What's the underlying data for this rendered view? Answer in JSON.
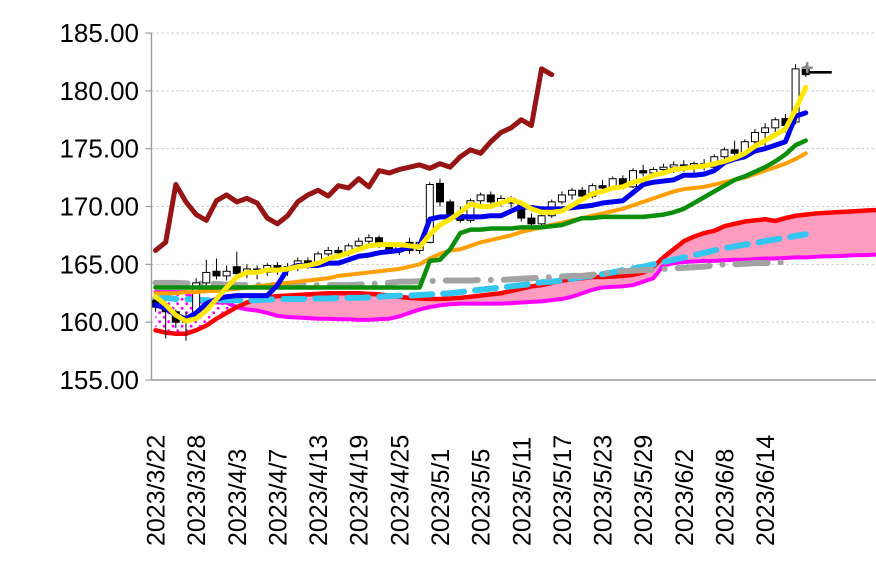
{
  "chart_data": {
    "type": "candlestick",
    "title": "",
    "legend": "none",
    "grid": "horizontal-dashed",
    "plot": {
      "background": "#FFFFFF",
      "gridline_color": "#C9C9C9",
      "axis_color": "#9B9B9B",
      "candle_up_fill": "#FFFFFF",
      "candle_down_fill": "#000000",
      "candle_border": "#000000"
    },
    "y_axis": {
      "min": 155,
      "max": 185,
      "step": 5,
      "labels": [
        "185.00",
        "180.00",
        "175.00",
        "170.00",
        "165.00",
        "160.00",
        "155.00"
      ]
    },
    "x_axis": {
      "tick_every": 4,
      "tick_labels": [
        "2023/3/22",
        "2023/3/28",
        "2023/4/3",
        "2023/4/7",
        "2023/4/13",
        "2023/4/19",
        "2023/4/25",
        "2023/5/1",
        "2023/5/5",
        "2023/5/11",
        "2023/5/17",
        "2023/5/23",
        "2023/5/29",
        "2023/6/2",
        "2023/6/8",
        "2023/6/14"
      ]
    },
    "candles": [
      [
        161.9,
        162.3,
        160.9,
        161.3
      ],
      [
        161.3,
        161.8,
        158.6,
        160.9
      ],
      [
        160.9,
        161.1,
        159.5,
        160.0
      ],
      [
        160.0,
        160.9,
        158.4,
        160.4
      ],
      [
        160.4,
        163.8,
        160.2,
        163.4
      ],
      [
        163.4,
        165.4,
        163.0,
        164.3
      ],
      [
        164.4,
        165.5,
        163.7,
        164.0
      ],
      [
        164.0,
        164.9,
        163.6,
        164.4
      ],
      [
        164.8,
        166.1,
        164.0,
        164.2
      ],
      [
        164.2,
        165.0,
        163.8,
        164.6
      ],
      [
        164.6,
        164.9,
        163.7,
        164.3
      ],
      [
        164.3,
        165.1,
        164.0,
        164.9
      ],
      [
        164.9,
        165.2,
        164.1,
        164.5
      ],
      [
        164.5,
        165.1,
        164.0,
        164.8
      ],
      [
        164.8,
        165.6,
        164.4,
        165.3
      ],
      [
        165.3,
        165.6,
        164.6,
        165.1
      ],
      [
        165.1,
        166.1,
        164.8,
        165.9
      ],
      [
        165.9,
        166.5,
        165.4,
        166.2
      ],
      [
        166.2,
        166.5,
        165.6,
        166.0
      ],
      [
        166.0,
        166.8,
        165.7,
        166.6
      ],
      [
        166.6,
        167.3,
        166.2,
        167.0
      ],
      [
        167.0,
        167.6,
        166.6,
        167.3
      ],
      [
        167.3,
        167.5,
        166.4,
        166.6
      ],
      [
        166.6,
        166.9,
        165.9,
        166.1
      ],
      [
        166.1,
        166.9,
        165.8,
        166.7
      ],
      [
        166.9,
        167.3,
        165.9,
        166.2
      ],
      [
        166.2,
        167.1,
        165.9,
        166.9
      ],
      [
        166.9,
        172.1,
        166.8,
        171.9
      ],
      [
        172.0,
        172.4,
        170.0,
        170.4
      ],
      [
        170.4,
        170.6,
        169.0,
        169.3
      ],
      [
        169.3,
        170.0,
        168.6,
        168.8
      ],
      [
        168.8,
        170.7,
        168.6,
        170.5
      ],
      [
        170.5,
        171.2,
        169.9,
        171.0
      ],
      [
        171.0,
        171.3,
        170.0,
        170.4
      ],
      [
        170.4,
        171.0,
        170.0,
        170.7
      ],
      [
        170.7,
        170.9,
        169.9,
        170.3
      ],
      [
        170.3,
        170.5,
        168.7,
        169.0
      ],
      [
        169.0,
        169.4,
        168.2,
        168.5
      ],
      [
        168.5,
        169.4,
        168.2,
        169.2
      ],
      [
        169.2,
        170.6,
        169.0,
        170.4
      ],
      [
        170.4,
        171.3,
        170.2,
        171.0
      ],
      [
        171.0,
        171.6,
        170.6,
        171.4
      ],
      [
        171.4,
        171.7,
        170.6,
        170.9
      ],
      [
        170.9,
        172.0,
        170.7,
        171.8
      ],
      [
        171.8,
        172.3,
        171.3,
        171.6
      ],
      [
        171.6,
        172.6,
        171.4,
        172.4
      ],
      [
        172.4,
        172.7,
        171.5,
        171.7
      ],
      [
        171.7,
        173.3,
        171.6,
        173.1
      ],
      [
        173.1,
        173.6,
        172.6,
        172.9
      ],
      [
        172.9,
        173.4,
        172.5,
        173.2
      ],
      [
        173.2,
        173.7,
        172.8,
        173.4
      ],
      [
        173.4,
        173.9,
        172.9,
        173.6
      ],
      [
        173.6,
        174.0,
        173.0,
        173.3
      ],
      [
        173.3,
        173.9,
        172.8,
        173.7
      ],
      [
        173.7,
        174.1,
        173.1,
        173.4
      ],
      [
        173.4,
        174.5,
        173.2,
        174.3
      ],
      [
        174.3,
        175.1,
        173.9,
        174.9
      ],
      [
        174.9,
        175.7,
        174.4,
        174.6
      ],
      [
        174.6,
        175.8,
        174.4,
        175.6
      ],
      [
        175.6,
        176.7,
        175.3,
        176.4
      ],
      [
        176.4,
        177.2,
        175.0,
        176.8
      ],
      [
        176.8,
        177.7,
        176.2,
        177.5
      ],
      [
        177.6,
        178.0,
        176.4,
        177.0
      ],
      [
        177.3,
        182.3,
        177.1,
        181.9
      ],
      [
        181.9,
        182.2,
        181.2,
        181.4
      ]
    ],
    "series": [
      {
        "name": "lagging-span",
        "color": "#961414",
        "width": 5,
        "style": "solid",
        "start": 0,
        "values": [
          166.2,
          166.9,
          171.9,
          170.4,
          169.3,
          168.8,
          170.5,
          171.0,
          170.4,
          170.7,
          170.3,
          169.0,
          168.5,
          169.2,
          170.4,
          171.0,
          171.4,
          170.9,
          171.8,
          171.6,
          172.4,
          171.7,
          173.1,
          172.9,
          173.2,
          173.4,
          173.6,
          173.3,
          173.7,
          173.4,
          174.3,
          174.9,
          174.6,
          175.6,
          176.4,
          176.8,
          177.5,
          177.0,
          181.9,
          181.4
        ]
      },
      {
        "name": "ma-fast-yellow",
        "color": "#FFE800",
        "width": 5,
        "style": "solid",
        "start": 0,
        "values": [
          162.2,
          161.5,
          160.6,
          160.1,
          160.3,
          161.0,
          162.0,
          163.0,
          163.9,
          164.3,
          164.3,
          164.5,
          164.5,
          164.6,
          164.8,
          164.9,
          165.1,
          165.5,
          165.7,
          166.0,
          166.3,
          166.6,
          166.7,
          166.7,
          166.7,
          166.6,
          166.5,
          167.6,
          168.4,
          168.9,
          169.5,
          170.2,
          170.0,
          170.0,
          170.3,
          170.6,
          170.3,
          169.8,
          169.5,
          169.5,
          169.6,
          170.1,
          170.6,
          171.1,
          171.3,
          171.6,
          171.7,
          172.1,
          172.3,
          172.7,
          172.9,
          173.2,
          173.3,
          173.4,
          173.5,
          173.7,
          173.9,
          174.2,
          174.6,
          175.2,
          175.7,
          176.2,
          176.7,
          178.4,
          180.3
        ]
      },
      {
        "name": "conversion-line-blue",
        "color": "#0000EE",
        "width": 5,
        "style": "solid",
        "start": 0,
        "values": [
          161.5,
          161.2,
          160.6,
          160.3,
          160.8,
          161.6,
          162.0,
          162.2,
          162.3,
          162.3,
          162.3,
          162.3,
          163.2,
          164.6,
          164.9,
          164.9,
          164.9,
          165.1,
          165.1,
          165.4,
          165.7,
          165.8,
          166.0,
          166.1,
          166.2,
          166.5,
          166.6,
          168.9,
          169.1,
          169.1,
          169.1,
          169.1,
          169.1,
          169.2,
          169.2,
          169.6,
          170.0,
          169.9,
          169.8,
          169.8,
          169.8,
          169.9,
          170.0,
          170.1,
          170.3,
          170.4,
          170.5,
          171.2,
          171.9,
          172.1,
          172.2,
          172.3,
          172.7,
          172.7,
          172.8,
          173.1,
          173.8,
          174.1,
          174.3,
          174.8,
          175.0,
          175.3,
          175.6,
          177.8,
          178.1
        ]
      },
      {
        "name": "base-line-green",
        "color": "#0B8F0B",
        "width": 4.5,
        "style": "solid",
        "start": 0,
        "values": [
          163.0,
          163.0,
          163.0,
          163.0,
          163.0,
          163.0,
          163.0,
          163.0,
          163.0,
          163.0,
          163.0,
          163.0,
          163.0,
          163.0,
          163.0,
          163.0,
          163.0,
          163.0,
          163.0,
          163.0,
          163.0,
          163.0,
          163.0,
          163.0,
          163.0,
          163.0,
          163.0,
          165.3,
          165.4,
          166.3,
          167.7,
          168.0,
          168.0,
          168.1,
          168.1,
          168.1,
          168.2,
          168.2,
          168.2,
          168.3,
          168.4,
          168.7,
          169.0,
          169.0,
          169.1,
          169.1,
          169.1,
          169.1,
          169.1,
          169.2,
          169.3,
          169.5,
          169.8,
          170.3,
          170.8,
          171.3,
          171.8,
          172.3,
          172.6,
          173.0,
          173.4,
          173.9,
          174.5,
          175.3,
          175.7
        ]
      },
      {
        "name": "ma-mid-orange",
        "color": "#FFA000",
        "width": 4,
        "style": "solid",
        "start": 0,
        "values": [
          162.5,
          162.5,
          162.5,
          162.6,
          162.6,
          162.7,
          162.7,
          162.8,
          162.9,
          163.0,
          163.1,
          163.2,
          163.3,
          163.4,
          163.5,
          163.6,
          163.7,
          163.8,
          164.0,
          164.1,
          164.2,
          164.3,
          164.4,
          164.5,
          164.6,
          164.8,
          165.0,
          165.5,
          165.9,
          166.2,
          166.3,
          166.6,
          166.9,
          167.1,
          167.3,
          167.5,
          167.8,
          168.0,
          168.2,
          168.4,
          168.6,
          168.8,
          169.0,
          169.2,
          169.4,
          169.6,
          169.8,
          170.1,
          170.4,
          170.7,
          171.0,
          171.3,
          171.5,
          171.6,
          171.7,
          171.9,
          172.1,
          172.3,
          172.5,
          172.8,
          173.1,
          173.4,
          173.7,
          174.1,
          174.6
        ]
      },
      {
        "name": "ma-slow-cyan-dashed",
        "color": "#33C6F0",
        "width": 6,
        "style": "dashed",
        "start": 0,
        "values": [
          162.1,
          162.1,
          162.0,
          162.0,
          161.95,
          161.9,
          161.9,
          161.9,
          161.9,
          161.9,
          161.9,
          161.95,
          162.0,
          162.0,
          162.0,
          162.0,
          162.05,
          162.05,
          162.1,
          162.1,
          162.1,
          162.15,
          162.2,
          162.25,
          162.3,
          162.3,
          162.35,
          162.4,
          162.45,
          162.5,
          162.6,
          162.7,
          162.8,
          162.9,
          163.0,
          163.1,
          163.2,
          163.3,
          163.45,
          163.5,
          163.6,
          163.75,
          163.9,
          164.0,
          164.15,
          164.3,
          164.5,
          164.65,
          164.8,
          165.0,
          165.2,
          165.4,
          165.6,
          165.8,
          166.0,
          166.2,
          166.4,
          166.55,
          166.7,
          166.85,
          167.0,
          167.15,
          167.3,
          167.45,
          167.6
        ]
      },
      {
        "name": "ma-long-gray-dashdot",
        "color": "#A3A3A3",
        "width": 6,
        "style": "dashdot",
        "start": 0,
        "values": [
          163.4,
          163.4,
          163.4,
          163.35,
          163.35,
          163.3,
          163.3,
          163.25,
          163.2,
          163.2,
          163.2,
          163.2,
          163.2,
          163.2,
          163.2,
          163.2,
          163.2,
          163.2,
          163.2,
          163.2,
          163.25,
          163.3,
          163.35,
          163.4,
          163.5,
          163.5,
          163.55,
          163.55,
          163.6,
          163.6,
          163.6,
          163.6,
          163.65,
          163.65,
          163.65,
          163.7,
          163.75,
          163.8,
          163.85,
          163.9,
          163.95,
          164.0,
          164.0,
          164.1,
          164.2,
          164.3,
          164.4,
          164.45,
          164.5,
          164.55,
          164.6,
          164.65,
          164.7,
          164.75,
          164.8,
          164.9,
          165.0,
          165.0,
          165.05,
          165.1,
          165.1,
          165.15,
          165.2
        ]
      }
    ],
    "cloud": {
      "fill_bullish": "#FF9CC0",
      "fill_bearish": "magenta-dot-pattern",
      "crossover_index": 8,
      "senkou_a": {
        "name": "cloud-top-red",
        "color": "#FF0000",
        "width": 4.5,
        "values": [
          159.3,
          159.1,
          159.0,
          159.0,
          159.3,
          159.7,
          160.3,
          160.8,
          161.3,
          161.7,
          162.0,
          162.15,
          162.25,
          162.3,
          162.35,
          162.4,
          162.45,
          162.5,
          162.5,
          162.5,
          162.5,
          162.45,
          162.4,
          162.3,
          162.2,
          162.1,
          162.05,
          162.0,
          162.0,
          162.05,
          162.1,
          162.2,
          162.3,
          162.4,
          162.5,
          162.7,
          162.9,
          163.1,
          163.2,
          163.4,
          163.6,
          163.7,
          163.8,
          163.9,
          163.9,
          163.95,
          164.0,
          164.1,
          164.3,
          164.8,
          165.6,
          166.3,
          167.0,
          167.4,
          167.7,
          167.9,
          168.3,
          168.5,
          168.7,
          168.8,
          168.9,
          168.75,
          169.0,
          169.2,
          169.3,
          169.4,
          169.45,
          169.5,
          169.55,
          169.6,
          169.65,
          169.7
        ]
      },
      "senkou_b": {
        "name": "cloud-bottom-magenta",
        "color": "#FF00FF",
        "width": 4,
        "values": [
          162.6,
          162.6,
          162.6,
          162.6,
          161.8,
          161.75,
          161.7,
          161.7,
          161.3,
          161.1,
          161.0,
          160.8,
          160.55,
          160.45,
          160.4,
          160.35,
          160.3,
          160.3,
          160.25,
          160.25,
          160.2,
          160.2,
          160.25,
          160.3,
          160.5,
          160.8,
          161.1,
          161.3,
          161.45,
          161.55,
          161.6,
          161.6,
          161.6,
          161.6,
          161.6,
          161.65,
          161.7,
          161.75,
          161.8,
          161.9,
          162.0,
          162.2,
          162.5,
          162.8,
          163.0,
          163.05,
          163.1,
          163.2,
          163.5,
          163.8,
          164.9,
          165.1,
          165.2,
          165.25,
          165.3,
          165.3,
          165.35,
          165.4,
          165.4,
          165.45,
          165.5,
          165.5,
          165.55,
          165.6,
          165.6,
          165.65,
          165.7,
          165.7,
          165.75,
          165.8,
          165.8,
          165.85
        ]
      }
    },
    "annotations": {
      "last_close_line": {
        "value": 181.6,
        "color": "#000000"
      },
      "last_price_cross": {
        "value": 182.0,
        "color": "#8C8C8C"
      }
    }
  }
}
